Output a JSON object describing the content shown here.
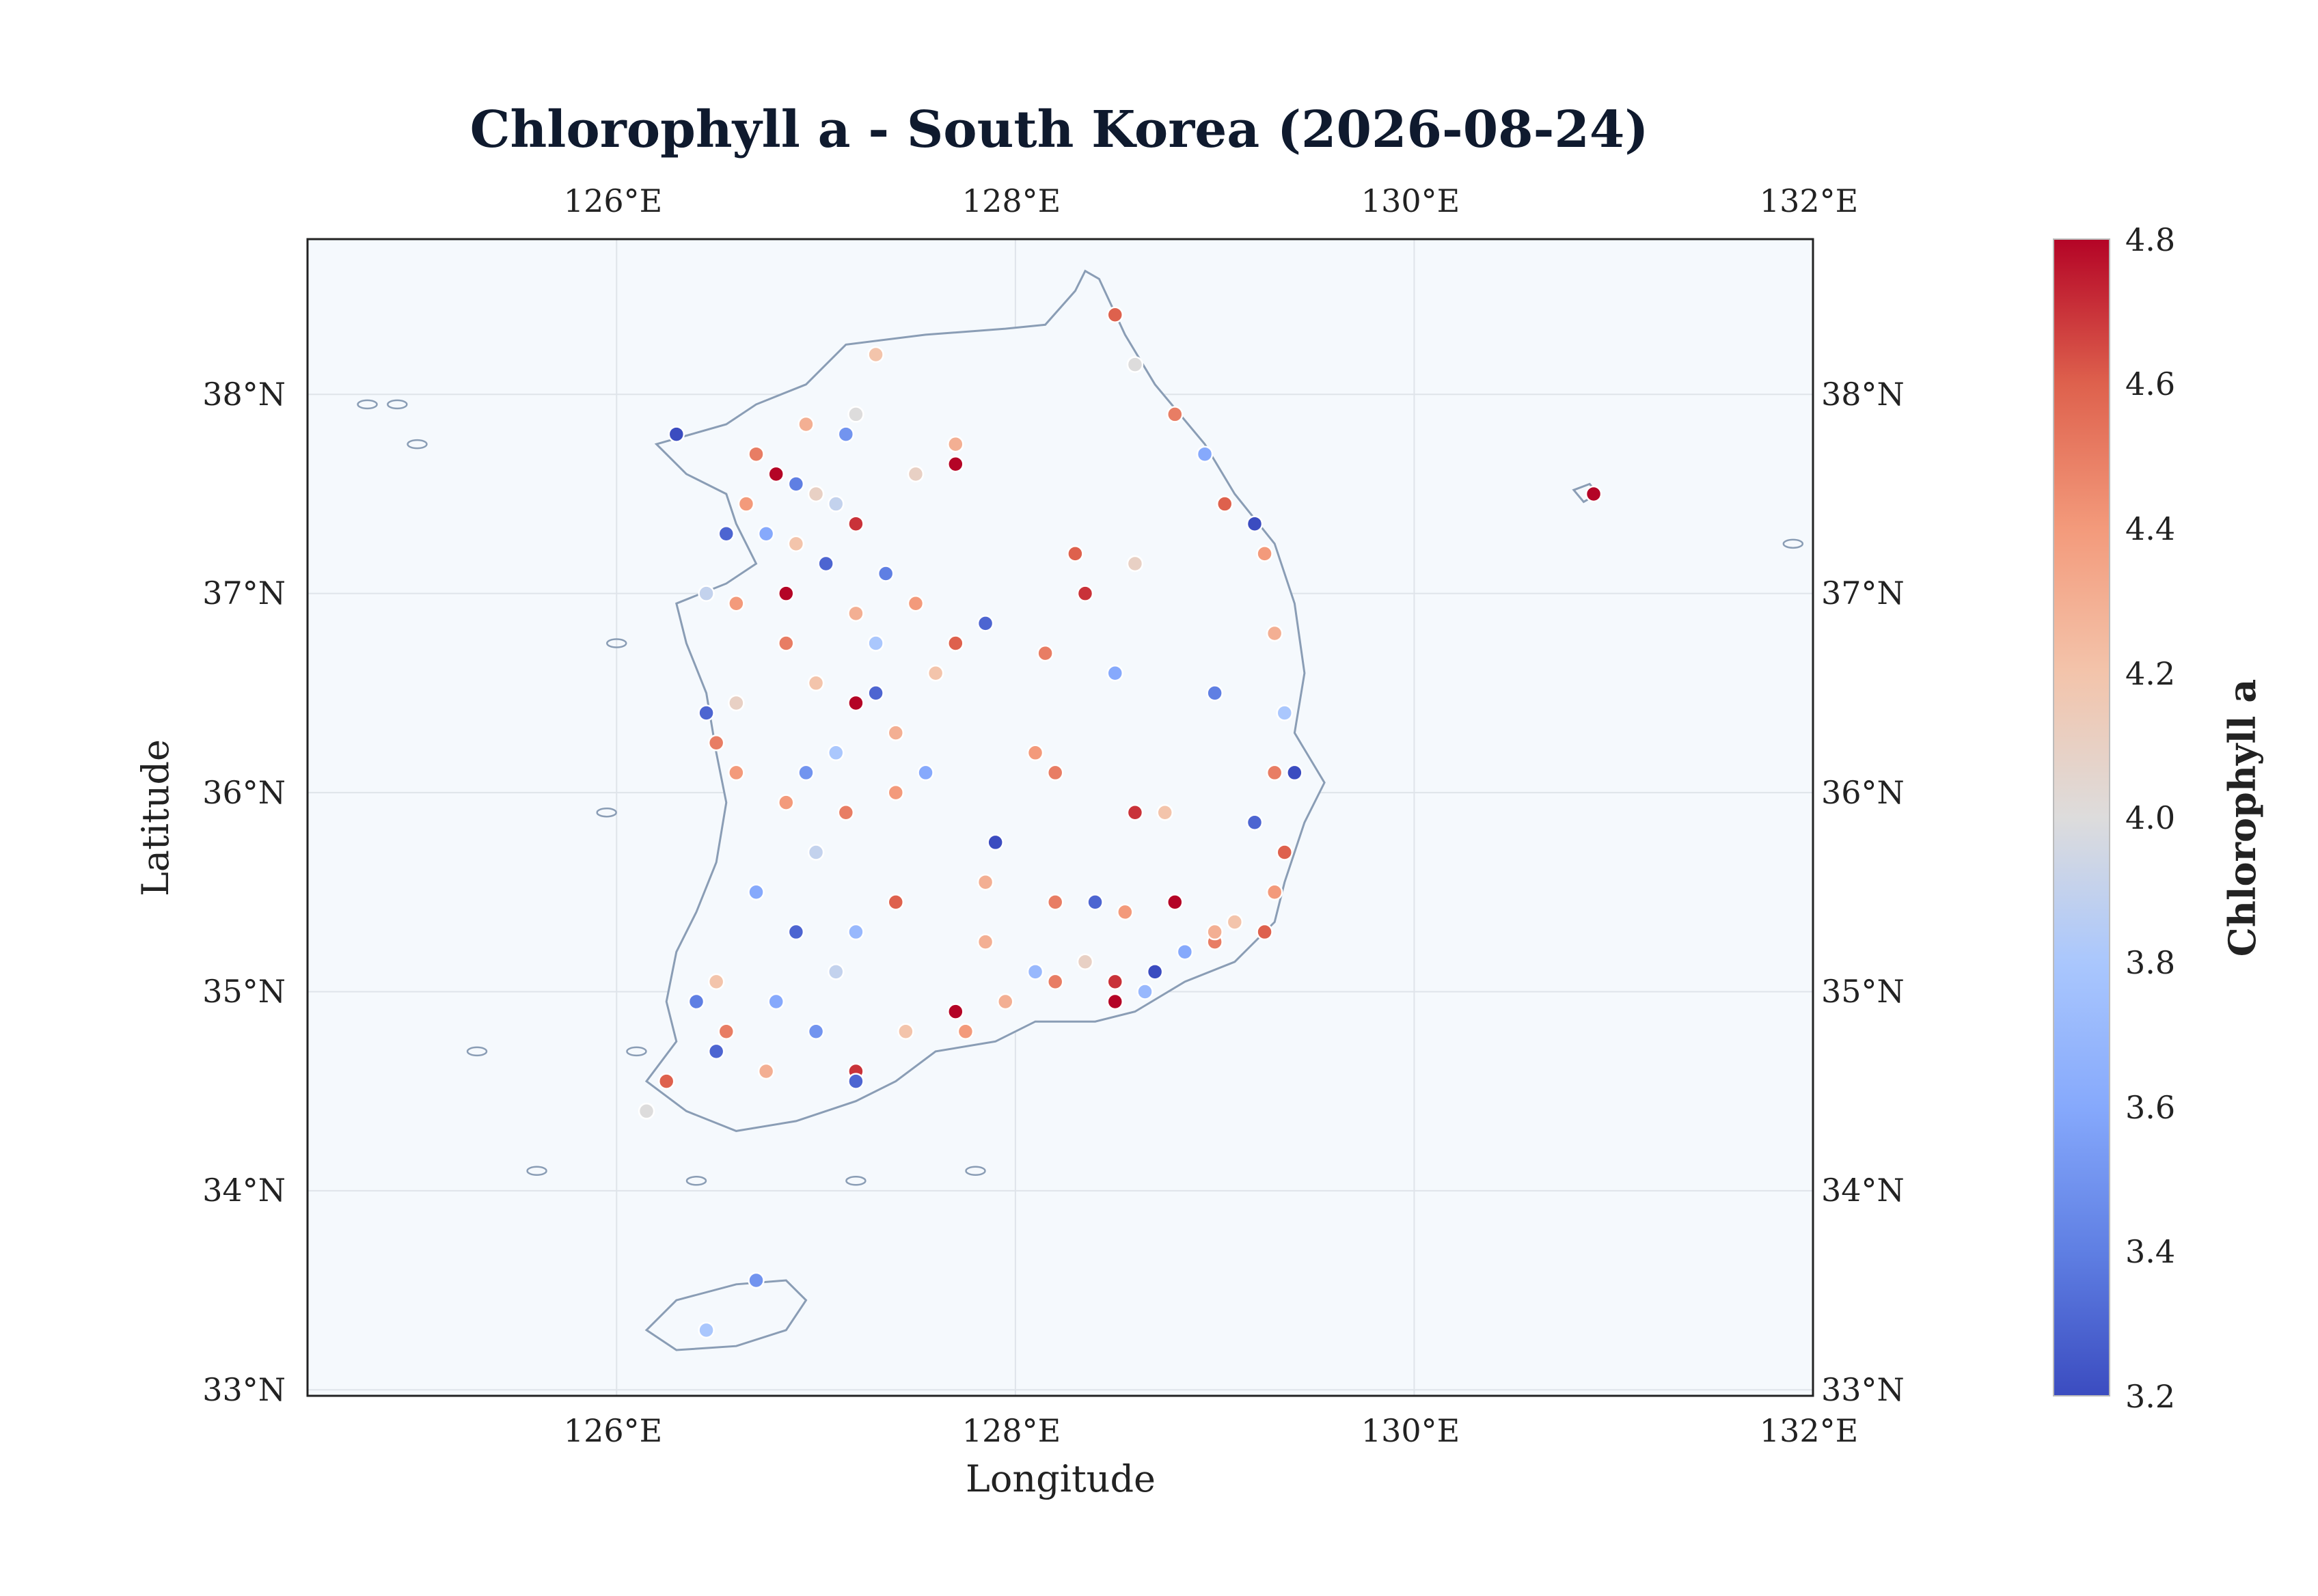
{
  "title": "Chlorophyll a - South Korea (2026-08-24)",
  "x_axis": {
    "label": "Longitude",
    "ticks": [
      "126°E",
      "128°E",
      "130°E",
      "132°E"
    ]
  },
  "y_axis": {
    "label": "Latitude",
    "ticks": [
      "33°N",
      "34°N",
      "35°N",
      "36°N",
      "37°N",
      "38°N"
    ]
  },
  "colorbar": {
    "label": "Chlorophyll a",
    "ticks": [
      "3.2",
      "3.4",
      "3.6",
      "3.8",
      "4.0",
      "4.2",
      "4.4",
      "4.6",
      "4.8"
    ],
    "range": [
      3.2,
      4.8
    ],
    "colormap": "coolwarm"
  },
  "colors": {
    "ocean": "#f5f9fd",
    "coast": "#8a9db5",
    "grid": "#dfe4ea"
  },
  "map_data": {
    "region": "South Korea",
    "lon_range": [
      124.45,
      132.0
    ],
    "lat_range": [
      32.97,
      38.78
    ],
    "points": [
      [
        126.3,
        37.8,
        3.2
      ],
      [
        126.7,
        37.7,
        4.5
      ],
      [
        126.8,
        37.6,
        4.8
      ],
      [
        126.9,
        37.55,
        3.4
      ],
      [
        127.0,
        37.5,
        4.1
      ],
      [
        127.1,
        37.45,
        3.9
      ],
      [
        127.2,
        37.35,
        4.7
      ],
      [
        126.65,
        37.45,
        4.4
      ],
      [
        126.75,
        37.3,
        3.6
      ],
      [
        126.9,
        37.25,
        4.2
      ],
      [
        127.05,
        37.15,
        3.3
      ],
      [
        126.85,
        37.0,
        4.8
      ],
      [
        126.6,
        36.95,
        4.4
      ],
      [
        126.45,
        37.0,
        3.9
      ],
      [
        127.2,
        36.9,
        4.3
      ],
      [
        127.5,
        36.95,
        4.4
      ],
      [
        127.7,
        36.75,
        4.6
      ],
      [
        127.85,
        36.85,
        3.3
      ],
      [
        127.6,
        36.6,
        4.2
      ],
      [
        127.3,
        36.5,
        3.3
      ],
      [
        127.2,
        36.45,
        4.8
      ],
      [
        127.4,
        36.3,
        4.3
      ],
      [
        127.1,
        36.2,
        3.8
      ],
      [
        126.95,
        36.1,
        3.5
      ],
      [
        126.6,
        36.1,
        4.4
      ],
      [
        126.5,
        36.25,
        4.5
      ],
      [
        126.45,
        36.4,
        3.3
      ],
      [
        126.6,
        36.45,
        4.1
      ],
      [
        126.85,
        35.95,
        4.4
      ],
      [
        127.15,
        35.9,
        4.5
      ],
      [
        127.0,
        35.7,
        3.9
      ],
      [
        126.7,
        35.5,
        3.6
      ],
      [
        126.9,
        35.3,
        3.3
      ],
      [
        127.2,
        35.3,
        3.7
      ],
      [
        127.4,
        35.45,
        4.6
      ],
      [
        127.1,
        35.1,
        3.9
      ],
      [
        126.8,
        34.95,
        3.6
      ],
      [
        126.5,
        35.05,
        4.2
      ],
      [
        126.4,
        34.95,
        3.4
      ],
      [
        126.55,
        34.8,
        4.5
      ],
      [
        126.5,
        34.7,
        3.3
      ],
      [
        126.25,
        34.55,
        4.6
      ],
      [
        126.15,
        34.4,
        4.0
      ],
      [
        126.75,
        34.6,
        4.3
      ],
      [
        127.0,
        34.8,
        3.5
      ],
      [
        127.2,
        34.6,
        4.7
      ],
      [
        127.2,
        34.55,
        3.3
      ],
      [
        127.45,
        34.8,
        4.2
      ],
      [
        127.7,
        34.9,
        4.8
      ],
      [
        127.75,
        34.8,
        4.4
      ],
      [
        127.95,
        34.95,
        4.3
      ],
      [
        128.1,
        35.1,
        3.7
      ],
      [
        128.2,
        35.05,
        4.5
      ],
      [
        128.35,
        35.15,
        4.1
      ],
      [
        128.5,
        35.05,
        4.7
      ],
      [
        128.7,
        35.1,
        3.2
      ],
      [
        128.85,
        35.2,
        3.6
      ],
      [
        129.0,
        35.25,
        4.5
      ],
      [
        129.1,
        35.35,
        4.2
      ],
      [
        129.25,
        35.3,
        4.6
      ],
      [
        129.3,
        35.5,
        4.4
      ],
      [
        129.35,
        35.7,
        4.6
      ],
      [
        129.4,
        36.1,
        3.2
      ],
      [
        129.3,
        36.1,
        4.5
      ],
      [
        129.35,
        36.4,
        3.8
      ],
      [
        129.3,
        36.8,
        4.3
      ],
      [
        129.25,
        37.2,
        4.4
      ],
      [
        129.05,
        37.45,
        4.6
      ],
      [
        128.95,
        37.7,
        3.6
      ],
      [
        128.8,
        37.9,
        4.5
      ],
      [
        128.5,
        38.4,
        4.6
      ],
      [
        128.6,
        38.15,
        4.0
      ],
      [
        129.2,
        37.35,
        3.2
      ],
      [
        128.6,
        37.15,
        4.1
      ],
      [
        128.3,
        37.2,
        4.6
      ],
      [
        128.35,
        37.0,
        4.7
      ],
      [
        128.15,
        36.7,
        4.5
      ],
      [
        128.5,
        36.6,
        3.6
      ],
      [
        128.1,
        36.2,
        4.4
      ],
      [
        128.2,
        36.1,
        4.5
      ],
      [
        128.75,
        35.9,
        4.2
      ],
      [
        128.6,
        35.9,
        4.7
      ],
      [
        129.2,
        35.85,
        3.3
      ],
      [
        129.0,
        36.5,
        3.4
      ],
      [
        128.4,
        35.45,
        3.3
      ],
      [
        128.55,
        35.4,
        4.4
      ],
      [
        128.8,
        35.45,
        4.8
      ],
      [
        129.0,
        35.3,
        4.3
      ],
      [
        128.5,
        34.95,
        4.8
      ],
      [
        128.65,
        35.0,
        3.7
      ],
      [
        127.9,
        35.75,
        3.2
      ],
      [
        127.85,
        35.55,
        4.3
      ],
      [
        128.2,
        35.45,
        4.5
      ],
      [
        127.85,
        35.25,
        4.3
      ],
      [
        127.4,
        36.0,
        4.4
      ],
      [
        127.55,
        36.1,
        3.6
      ],
      [
        127.0,
        36.55,
        4.2
      ],
      [
        126.85,
        36.75,
        4.5
      ],
      [
        127.3,
        36.75,
        3.8
      ],
      [
        127.35,
        37.1,
        3.4
      ],
      [
        127.5,
        37.6,
        4.1
      ],
      [
        127.7,
        37.75,
        4.3
      ],
      [
        127.7,
        37.65,
        4.8
      ],
      [
        127.2,
        37.9,
        4.0
      ],
      [
        127.3,
        38.2,
        4.2
      ],
      [
        126.95,
        37.85,
        4.3
      ],
      [
        127.15,
        37.8,
        3.5
      ],
      [
        126.55,
        37.3,
        3.3
      ],
      [
        130.9,
        37.5,
        4.8
      ],
      [
        126.7,
        33.55,
        3.5
      ],
      [
        126.45,
        33.3,
        3.8
      ]
    ]
  }
}
